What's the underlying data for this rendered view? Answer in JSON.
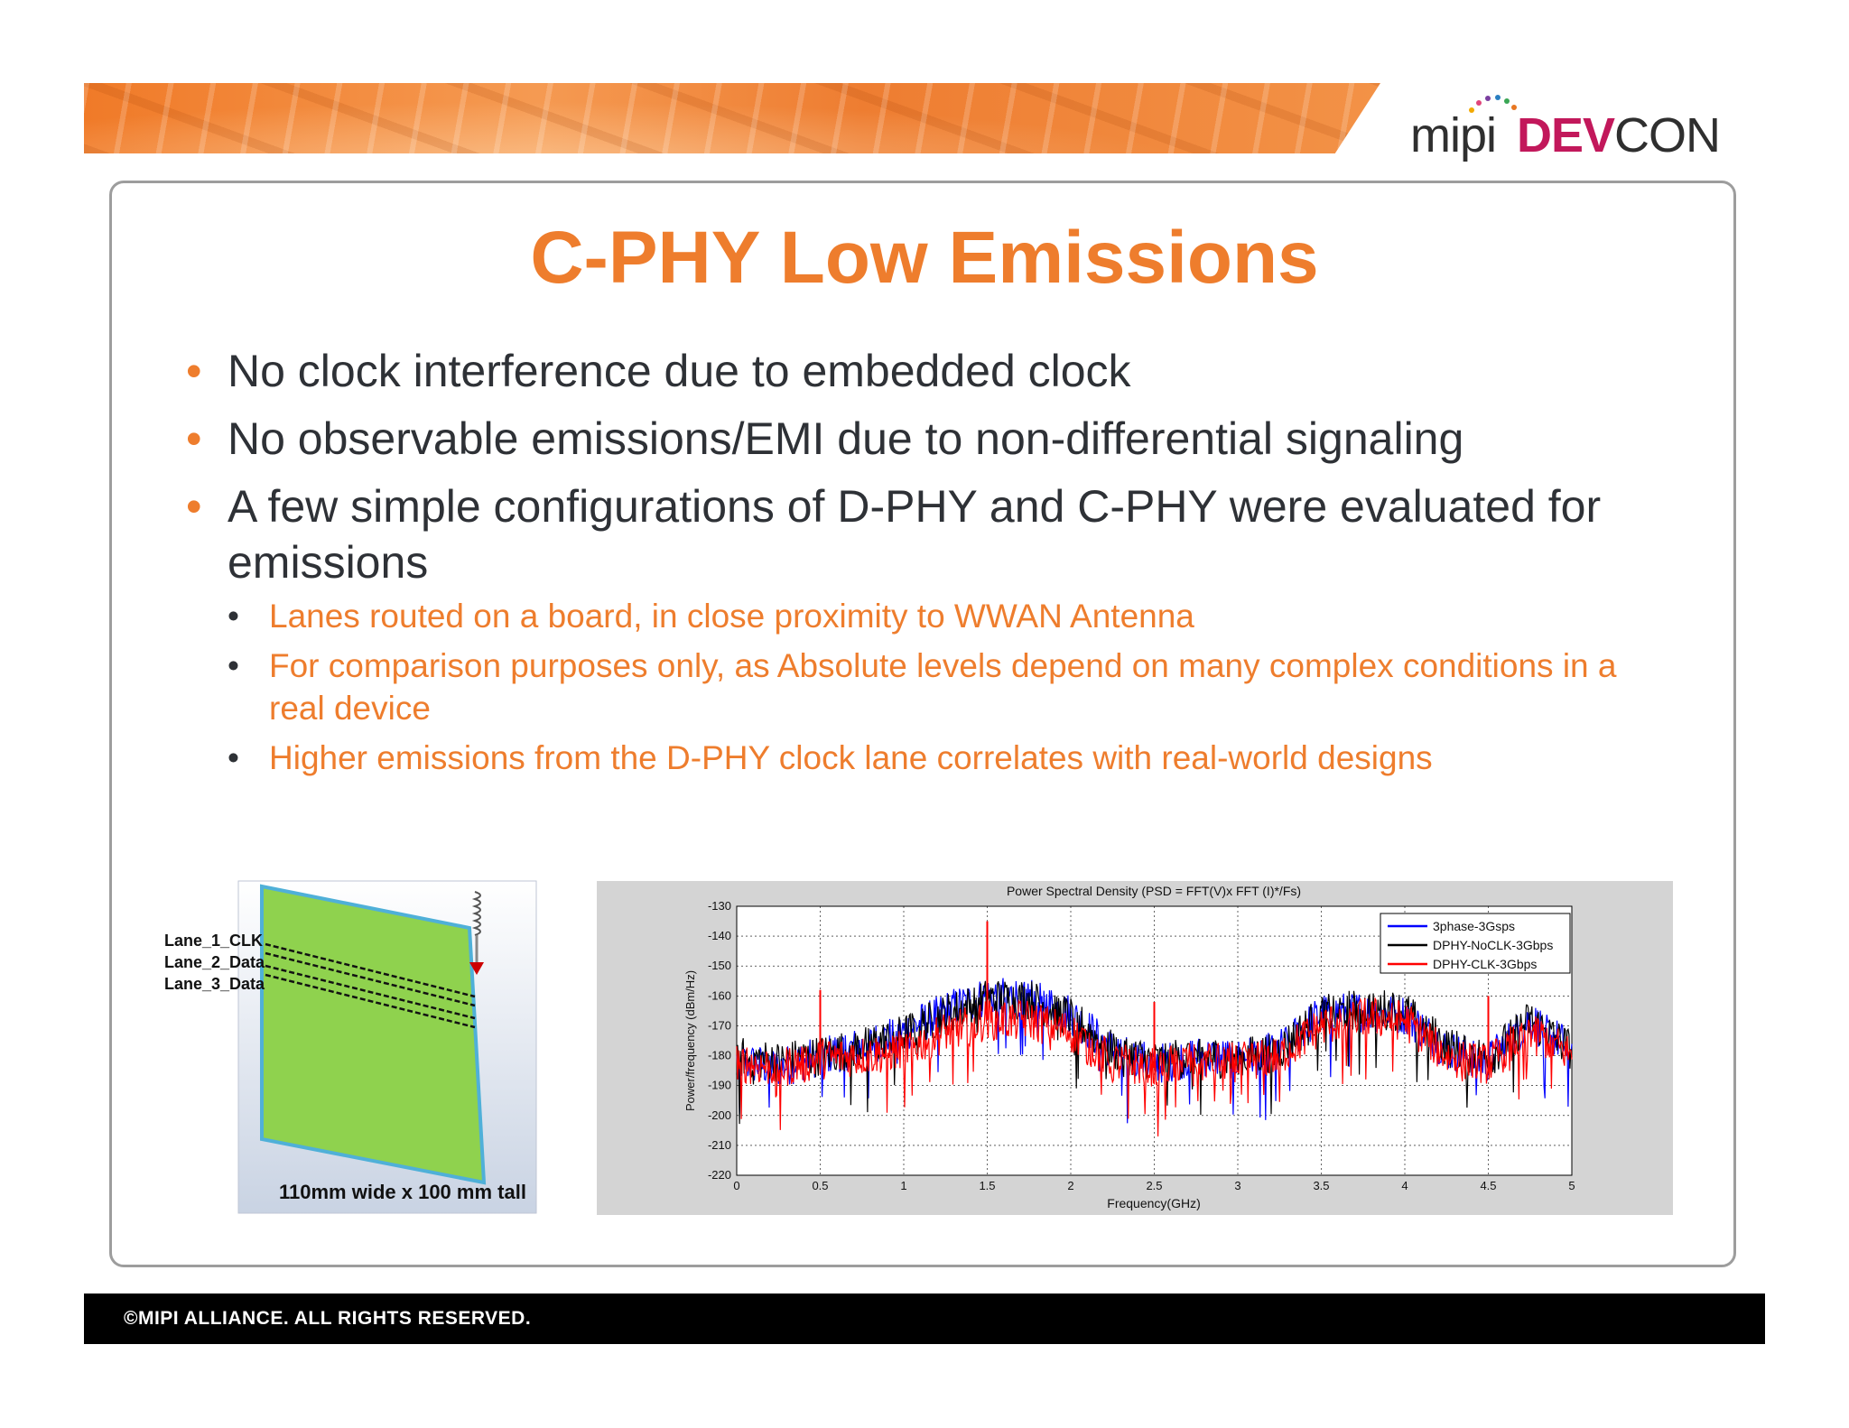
{
  "header": {
    "logo_mipi": "mipi",
    "logo_dev": "DEV",
    "logo_con": "CON"
  },
  "title": "C-PHY Low Emissions",
  "bullets": [
    "No clock interference due to embedded clock",
    "No observable emissions/EMI due to non-differential signaling",
    "A few simple configurations of D-PHY and C-PHY were evaluated for emissions"
  ],
  "sub_bullets": [
    "Lanes routed on a board, in close proximity to WWAN Antenna",
    "For comparison purposes only, as Absolute levels depend on many complex conditions in a real device",
    "Higher emissions from the D-PHY clock lane correlates with real-world designs"
  ],
  "board_figure": {
    "lane_labels": [
      "Lane_1_CLK",
      "Lane_2_Data",
      "Lane_3_Data"
    ],
    "caption": "110mm wide x 100 mm tall",
    "board_color": "#8fd24e"
  },
  "chart_data": {
    "type": "line",
    "title": "Power Spectral Density (PSD = FFT(V)x FFT (I)*/Fs)",
    "xlabel": "Frequency(GHz)",
    "ylabel": "Power/frequency (dBm/Hz)",
    "xlim": [
      0,
      5
    ],
    "ylim": [
      -220,
      -130
    ],
    "x_ticks": [
      "0",
      "0.5",
      "1",
      "1.5",
      "2",
      "2.5",
      "3",
      "3.5",
      "4",
      "4.5",
      "5"
    ],
    "y_ticks": [
      "-130",
      "-140",
      "-150",
      "-160",
      "-170",
      "-180",
      "-190",
      "-200",
      "-210",
      "-220"
    ],
    "grid": true,
    "legend_position": "top-right",
    "x": [
      0,
      0.25,
      0.5,
      0.75,
      1.0,
      1.25,
      1.5,
      1.75,
      2.0,
      2.25,
      2.5,
      2.75,
      3.0,
      3.25,
      3.5,
      3.75,
      4.0,
      4.25,
      4.5,
      4.75,
      5.0
    ],
    "series": [
      {
        "name": "3phase-3Gsps",
        "color": "#0000ff",
        "values": [
          -182,
          -184,
          -180,
          -177,
          -172,
          -165,
          -160,
          -160,
          -166,
          -178,
          -183,
          -180,
          -181,
          -178,
          -166,
          -165,
          -166,
          -178,
          -182,
          -168,
          -178
        ]
      },
      {
        "name": "DPHY-NoCLK-3Gbps",
        "color": "#000000",
        "values": [
          -180,
          -182,
          -180,
          -177,
          -173,
          -166,
          -161,
          -161,
          -167,
          -178,
          -182,
          -180,
          -181,
          -178,
          -166,
          -164,
          -165,
          -177,
          -181,
          -168,
          -178
        ]
      },
      {
        "name": "DPHY-CLK-3Gbps",
        "color": "#ff0000",
        "values": [
          -182,
          -184,
          -181,
          -180,
          -178,
          -172,
          -168,
          -168,
          -172,
          -182,
          -184,
          -181,
          -182,
          -180,
          -170,
          -167,
          -168,
          -180,
          -183,
          -171,
          -180
        ]
      }
    ],
    "peaks": [
      {
        "series": "DPHY-CLK-3Gbps",
        "x": 0.5,
        "value": -158
      },
      {
        "series": "DPHY-CLK-3Gbps",
        "x": 1.5,
        "value": -135
      },
      {
        "series": "DPHY-CLK-3Gbps",
        "x": 2.5,
        "value": -162
      },
      {
        "series": "DPHY-CLK-3Gbps",
        "x": 4.5,
        "value": -160
      }
    ]
  },
  "footer": "©MIPI ALLIANCE. ALL RIGHTS RESERVED."
}
